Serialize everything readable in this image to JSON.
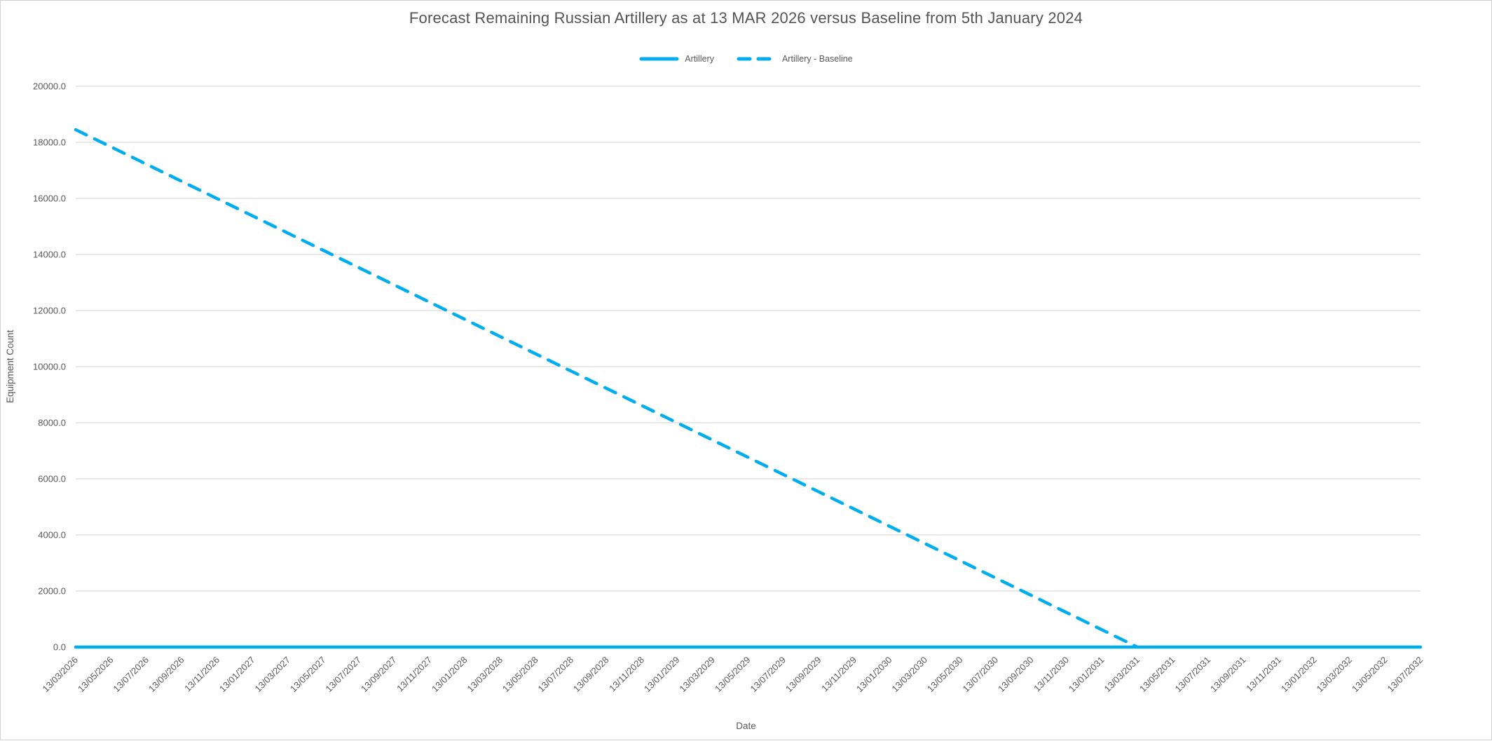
{
  "colors": {
    "accent": "#00AEEF",
    "grid": "#D9D9D9",
    "axis_text": "#595959",
    "title_text": "#545454",
    "background": "#FFFFFF"
  },
  "chart_data": {
    "type": "line",
    "title": "Forecast Remaining Russian Artillery as at 13 MAR 2026 versus Baseline from 5th January 2024",
    "xlabel": "Date",
    "ylabel": "Equipment Count",
    "ylim": [
      0,
      20000
    ],
    "ytick_step": 2000,
    "ytick_format": "one_decimal",
    "grid": "horizontal",
    "legend_position": "top-center",
    "x": [
      "13/03/2026",
      "13/05/2026",
      "13/07/2026",
      "13/09/2026",
      "13/11/2026",
      "13/01/2027",
      "13/03/2027",
      "13/05/2027",
      "13/07/2027",
      "13/09/2027",
      "13/11/2027",
      "13/01/2028",
      "13/03/2028",
      "13/05/2028",
      "13/07/2028",
      "13/09/2028",
      "13/11/2028",
      "13/01/2029",
      "13/03/2029",
      "13/05/2029",
      "13/07/2029",
      "13/09/2029",
      "13/11/2029",
      "13/01/2030",
      "13/03/2030",
      "13/05/2030",
      "13/07/2030",
      "13/09/2030",
      "13/11/2030",
      "13/01/2031",
      "13/03/2031",
      "13/05/2031",
      "13/07/2031",
      "13/09/2031",
      "13/11/2031",
      "13/01/2032",
      "13/03/2032",
      "13/05/2032",
      "13/07/2032"
    ],
    "series": [
      {
        "name": "Artillery",
        "color": "#00AEEF",
        "dash": "solid",
        "values": [
          0,
          0,
          0,
          0,
          0,
          0,
          0,
          0,
          0,
          0,
          0,
          0,
          0,
          0,
          0,
          0,
          0,
          0,
          0,
          0,
          0,
          0,
          0,
          0,
          0,
          0,
          0,
          0,
          0,
          0,
          0,
          0,
          0,
          0,
          0,
          0,
          0,
          0,
          0
        ]
      },
      {
        "name": "Artillery - Baseline",
        "color": "#00AEEF",
        "dash": "dashed",
        "values": [
          18450,
          17835,
          17220,
          16605,
          15990,
          15375,
          14760,
          14145,
          13530,
          12915,
          12300,
          11685,
          11070,
          10455,
          9840,
          9225,
          8610,
          7995,
          7380,
          6765,
          6150,
          5535,
          4920,
          4305,
          3690,
          3075,
          2460,
          1845,
          1230,
          615,
          0,
          null,
          null,
          null,
          null,
          null,
          null,
          null,
          null
        ]
      }
    ]
  }
}
